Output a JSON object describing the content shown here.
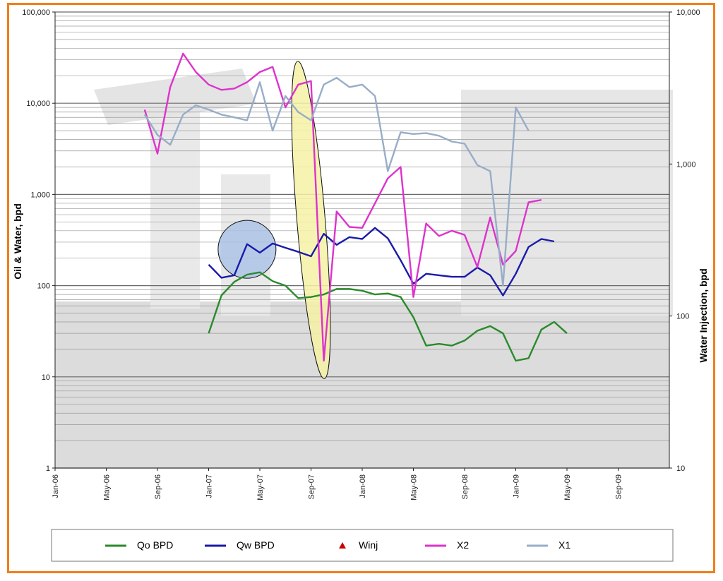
{
  "chart_data": {
    "type": "line",
    "y_left": {
      "label": "Oil & Water, bpd",
      "scale": "log",
      "range": [
        1,
        100000
      ],
      "ticks": [
        "1",
        "10",
        "100",
        "1,000",
        "10,000",
        "100,000"
      ]
    },
    "y_right": {
      "label": "Water Injection, bpd",
      "scale": "log",
      "range": [
        10,
        10000
      ],
      "ticks": [
        "10",
        "100",
        "1,000",
        "10,000"
      ]
    },
    "x_axis": {
      "range": [
        "2006-01",
        "2010-01"
      ],
      "ticks": [
        "Jan-06",
        "May-06",
        "Sep-06",
        "Jan-07",
        "May-07",
        "Sep-07",
        "Jan-08",
        "May-08",
        "Sep-08",
        "Jan-09",
        "May-09",
        "Sep-09"
      ]
    },
    "grid": true,
    "legend_position": "bottom",
    "series": [
      {
        "name": "Qo BPD",
        "color": "#2a8a2a",
        "axis": "left",
        "points": [
          [
            "2007-01",
            30
          ],
          [
            "2007-02",
            78
          ],
          [
            "2007-03",
            110
          ],
          [
            "2007-04",
            132
          ],
          [
            "2007-05",
            140
          ],
          [
            "2007-06",
            112
          ],
          [
            "2007-07",
            100
          ],
          [
            "2007-08",
            73
          ],
          [
            "2007-09",
            75
          ],
          [
            "2007-10",
            80
          ],
          [
            "2007-11",
            92
          ],
          [
            "2007-12",
            92
          ],
          [
            "2008-01",
            88
          ],
          [
            "2008-02",
            80
          ],
          [
            "2008-03",
            82
          ],
          [
            "2008-04",
            75
          ],
          [
            "2008-05",
            45
          ],
          [
            "2008-06",
            22
          ],
          [
            "2008-07",
            23
          ],
          [
            "2008-08",
            22
          ],
          [
            "2008-09",
            25
          ],
          [
            "2008-10",
            32
          ],
          [
            "2008-11",
            36
          ],
          [
            "2008-12",
            30
          ],
          [
            "2009-01",
            15
          ],
          [
            "2009-02",
            16
          ],
          [
            "2009-03",
            33
          ],
          [
            "2009-04",
            40
          ],
          [
            "2009-05",
            30
          ]
        ]
      },
      {
        "name": "Qw BPD",
        "color": "#1a1aaa",
        "axis": "left",
        "points": [
          [
            "2007-01",
            170
          ],
          [
            "2007-02",
            122
          ],
          [
            "2007-03",
            130
          ],
          [
            "2007-04",
            285
          ],
          [
            "2007-05",
            230
          ],
          [
            "2007-06",
            290
          ],
          [
            "2007-07",
            260
          ],
          [
            "2007-08",
            235
          ],
          [
            "2007-09",
            210
          ],
          [
            "2007-10",
            370
          ],
          [
            "2007-11",
            280
          ],
          [
            "2007-12",
            340
          ],
          [
            "2008-01",
            325
          ],
          [
            "2008-02",
            430
          ],
          [
            "2008-03",
            330
          ],
          [
            "2008-04",
            190
          ],
          [
            "2008-05",
            105
          ],
          [
            "2008-06",
            135
          ],
          [
            "2008-07",
            130
          ],
          [
            "2008-08",
            125
          ],
          [
            "2008-09",
            125
          ],
          [
            "2008-10",
            158
          ],
          [
            "2008-11",
            130
          ],
          [
            "2008-12",
            78
          ],
          [
            "2009-01",
            135
          ],
          [
            "2009-02",
            265
          ],
          [
            "2009-03",
            325
          ],
          [
            "2009-04",
            305
          ]
        ]
      },
      {
        "name": "Winj",
        "color": "#cc0000",
        "axis": "right",
        "points": []
      },
      {
        "name": "X2",
        "color": "#dd33cc",
        "axis": "left",
        "points": [
          [
            "2006-08",
            8500
          ],
          [
            "2006-09",
            2800
          ],
          [
            "2006-10",
            15000
          ],
          [
            "2006-11",
            35000
          ],
          [
            "2006-12",
            22000
          ],
          [
            "2007-01",
            16000
          ],
          [
            "2007-02",
            14000
          ],
          [
            "2007-03",
            14500
          ],
          [
            "2007-04",
            17000
          ],
          [
            "2007-05",
            22000
          ],
          [
            "2007-06",
            25000
          ],
          [
            "2007-07",
            9000
          ],
          [
            "2007-08",
            16000
          ],
          [
            "2007-09",
            17500
          ],
          [
            "2007-10",
            15
          ],
          [
            "2007-11",
            650
          ],
          [
            "2007-12",
            440
          ],
          [
            "2008-01",
            430
          ],
          [
            "2008-02",
            800
          ],
          [
            "2008-03",
            1500
          ],
          [
            "2008-04",
            2000
          ],
          [
            "2008-05",
            75
          ],
          [
            "2008-06",
            480
          ],
          [
            "2008-07",
            350
          ],
          [
            "2008-08",
            400
          ],
          [
            "2008-09",
            360
          ],
          [
            "2008-10",
            160
          ],
          [
            "2008-11",
            560
          ],
          [
            "2008-12",
            170
          ],
          [
            "2009-01",
            240
          ],
          [
            "2009-02",
            820
          ],
          [
            "2009-03",
            870
          ]
        ]
      },
      {
        "name": "X1",
        "color": "#98adc8",
        "axis": "left",
        "points": [
          [
            "2006-08",
            7500
          ],
          [
            "2006-09",
            4500
          ],
          [
            "2006-10",
            3500
          ],
          [
            "2006-11",
            7500
          ],
          [
            "2006-12",
            9500
          ],
          [
            "2007-01",
            8500
          ],
          [
            "2007-02",
            7500
          ],
          [
            "2007-03",
            7000
          ],
          [
            "2007-04",
            6500
          ],
          [
            "2007-05",
            17000
          ],
          [
            "2007-06",
            5000
          ],
          [
            "2007-07",
            12000
          ],
          [
            "2007-08",
            8000
          ],
          [
            "2007-09",
            6500
          ],
          [
            "2007-10",
            16000
          ],
          [
            "2007-11",
            19000
          ],
          [
            "2007-12",
            15000
          ],
          [
            "2008-01",
            16000
          ],
          [
            "2008-02",
            12000
          ],
          [
            "2008-03",
            1800
          ],
          [
            "2008-04",
            4800
          ],
          [
            "2008-05",
            4600
          ],
          [
            "2008-06",
            4700
          ],
          [
            "2008-07",
            4400
          ],
          [
            "2008-08",
            3800
          ],
          [
            "2008-09",
            3600
          ],
          [
            "2008-10",
            2100
          ],
          [
            "2008-11",
            1800
          ],
          [
            "2008-12",
            100
          ],
          [
            "2009-01",
            9000
          ],
          [
            "2009-02",
            5000
          ]
        ]
      }
    ],
    "highlights": [
      {
        "shape": "circle",
        "color": "#a9c2e6",
        "center": [
          "2007-04",
          250
        ]
      },
      {
        "shape": "ellipse",
        "color": "#f6f2a6",
        "from": [
          "2007-08",
          25000
        ],
        "to": [
          "2007-10",
          11
        ]
      }
    ]
  }
}
